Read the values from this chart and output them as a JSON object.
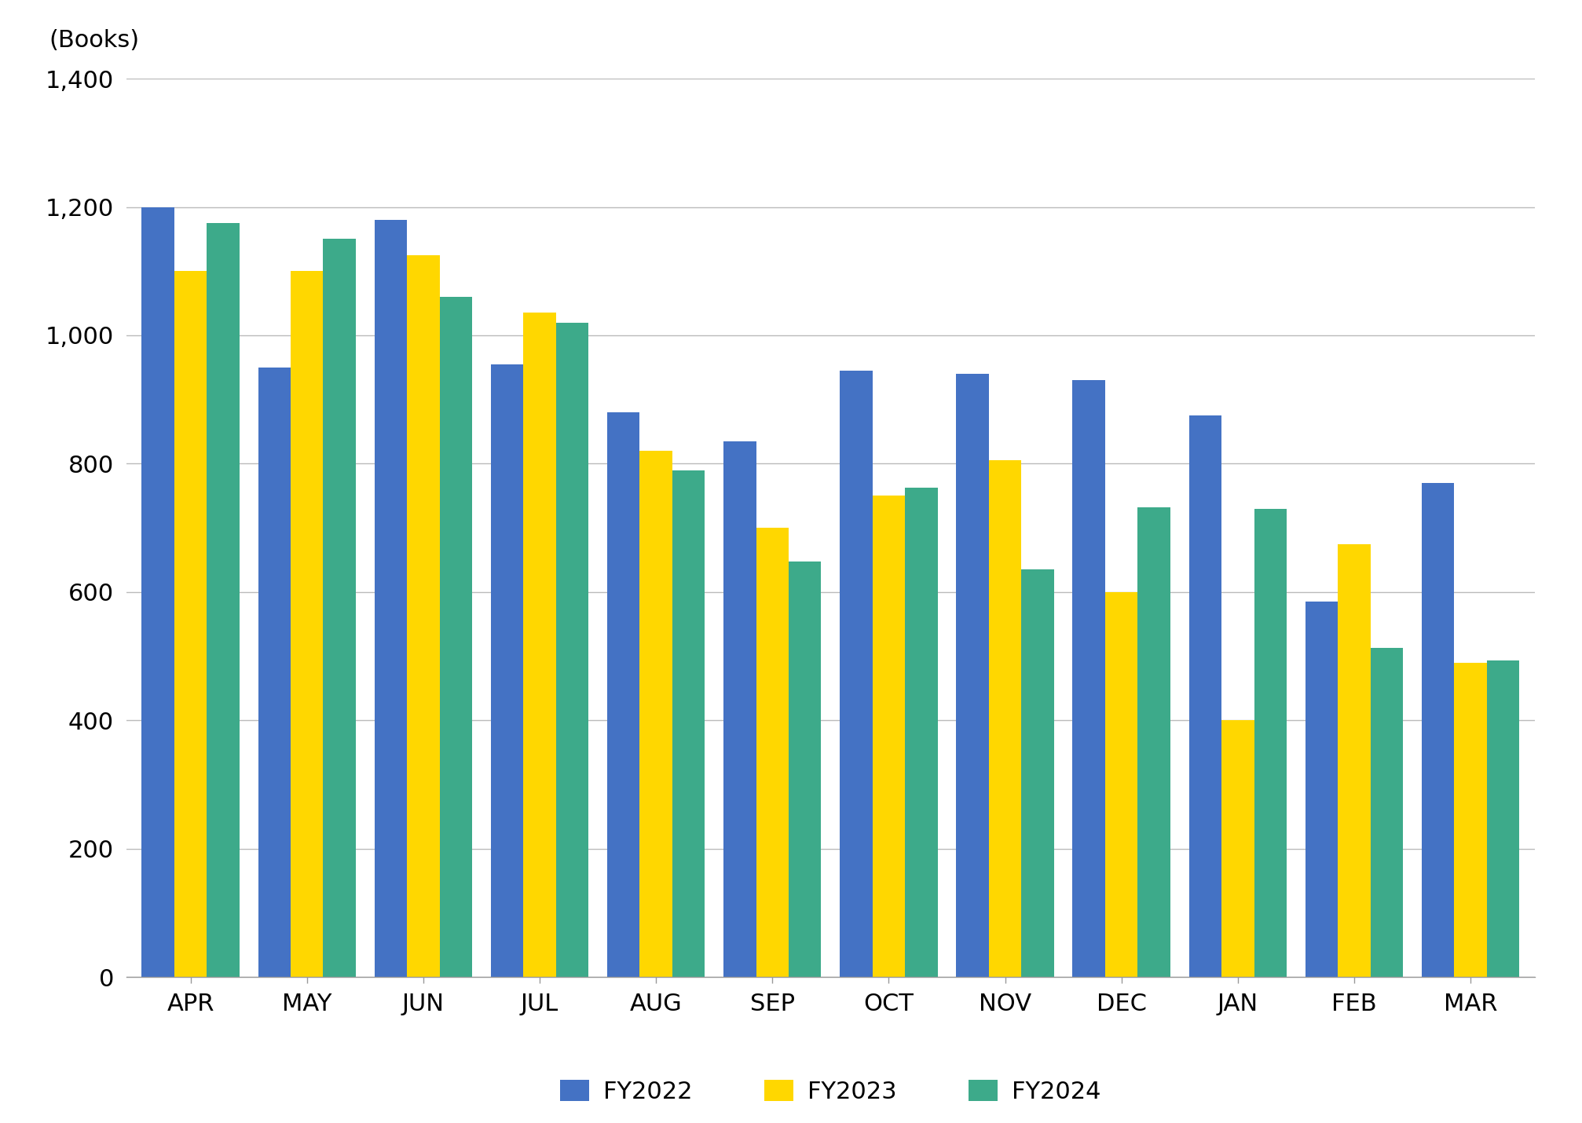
{
  "months": [
    "APR",
    "MAY",
    "JUN",
    "JUL",
    "AUG",
    "SEP",
    "OCT",
    "NOV",
    "DEC",
    "JAN",
    "FEB",
    "MAR"
  ],
  "fy2022": [
    1200,
    950,
    1180,
    955,
    880,
    835,
    945,
    940,
    930,
    875,
    585,
    770
  ],
  "fy2023": [
    1100,
    1100,
    1125,
    1035,
    820,
    700,
    750,
    805,
    600,
    400,
    675,
    490
  ],
  "fy2024": [
    1175,
    1150,
    1060,
    1020,
    790,
    648,
    762,
    635,
    732,
    730,
    513,
    493
  ],
  "color_fy2022": "#4472C4",
  "color_fy2023": "#FFD700",
  "color_fy2024": "#3DAA8A",
  "ylabel": "(Books)",
  "ylim_min": 0,
  "ylim_max": 1400,
  "ytick_step": 200,
  "bar_width": 0.28,
  "legend_labels": [
    "FY2022",
    "FY2023",
    "FY2024"
  ],
  "background_color": "#ffffff",
  "grid_color": "#bbbbbb",
  "tick_fontsize": 22,
  "legend_fontsize": 22,
  "ylabel_fontsize": 22
}
